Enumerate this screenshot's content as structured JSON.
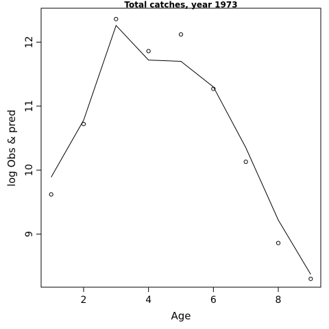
{
  "chart_data": {
    "type": "scatter",
    "title": "Total catches, year 1973",
    "xlabel": "Age",
    "ylabel": "log Obs & pred",
    "xlim": [
      0.69,
      9.31
    ],
    "ylim": [
      8.17,
      12.53
    ],
    "xticks": [
      2,
      4,
      6,
      8
    ],
    "yticks": [
      9,
      10,
      11,
      12
    ],
    "grid": false,
    "series": [
      {
        "marker": "circle",
        "x": [
          1,
          2,
          3,
          4,
          5,
          6,
          7,
          8,
          9
        ],
        "y": [
          9.62,
          10.72,
          12.36,
          11.86,
          12.12,
          11.27,
          10.13,
          8.86,
          8.3
        ]
      },
      {
        "marker": "line",
        "x": [
          1,
          2,
          3,
          4,
          5,
          6,
          7,
          8,
          9
        ],
        "y": [
          9.89,
          10.78,
          12.26,
          11.72,
          11.7,
          11.3,
          10.35,
          9.22,
          8.37
        ]
      }
    ]
  }
}
